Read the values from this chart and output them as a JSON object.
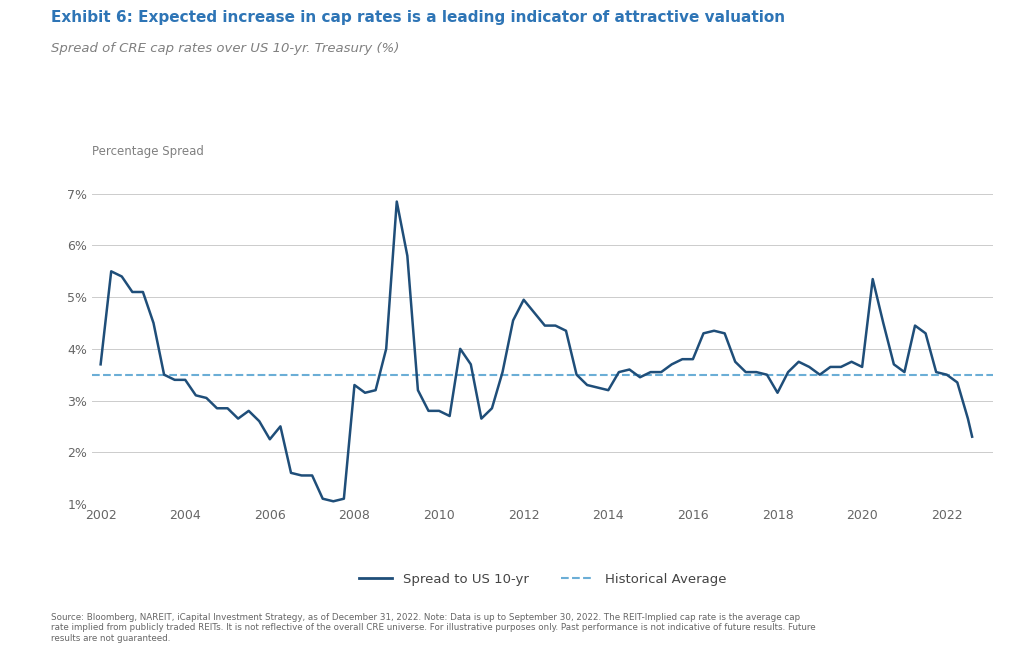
{
  "title": "Exhibit 6: Expected increase in cap rates is a leading indicator of attractive valuation",
  "subtitle": "Spread of CRE cap rates over US 10-yr. Treasury (%)",
  "ylabel": "Percentage Spread",
  "title_color": "#2E75B6",
  "subtitle_color": "#808080",
  "ylabel_color": "#808080",
  "background_color": "#FFFFFF",
  "grid_color": "#CCCCCC",
  "line_color": "#1F4E79",
  "avg_line_color": "#6BAED6",
  "historical_average": 3.5,
  "ylim": [
    1.0,
    7.5
  ],
  "yticks": [
    1,
    2,
    3,
    4,
    5,
    6,
    7
  ],
  "source_text": "Source: Bloomberg, NAREIT, iCapital Investment Strategy, as of December 31, 2022. Note: Data is up to September 30, 2022. The REIT-Implied cap rate is the average cap\nrate implied from publicly traded REITs. It is not reflective of the overall CRE universe. For illustrative purposes only. Past performance is not indicative of future results. Future\nresults are not guaranteed.",
  "legend_line_label": "Spread to US 10-yr",
  "legend_avg_label": "Historical Average",
  "x": [
    2002.0,
    2002.25,
    2002.5,
    2002.75,
    2003.0,
    2003.25,
    2003.5,
    2003.75,
    2004.0,
    2004.25,
    2004.5,
    2004.75,
    2005.0,
    2005.25,
    2005.5,
    2005.75,
    2006.0,
    2006.25,
    2006.5,
    2006.75,
    2007.0,
    2007.25,
    2007.5,
    2007.75,
    2008.0,
    2008.25,
    2008.5,
    2008.75,
    2009.0,
    2009.25,
    2009.5,
    2009.75,
    2010.0,
    2010.25,
    2010.5,
    2010.75,
    2011.0,
    2011.25,
    2011.5,
    2011.75,
    2012.0,
    2012.25,
    2012.5,
    2012.75,
    2013.0,
    2013.25,
    2013.5,
    2013.75,
    2014.0,
    2014.25,
    2014.5,
    2014.75,
    2015.0,
    2015.25,
    2015.5,
    2015.75,
    2016.0,
    2016.25,
    2016.5,
    2016.75,
    2017.0,
    2017.25,
    2017.5,
    2017.75,
    2018.0,
    2018.25,
    2018.5,
    2018.75,
    2019.0,
    2019.25,
    2019.5,
    2019.75,
    2020.0,
    2020.25,
    2020.5,
    2020.75,
    2021.0,
    2021.25,
    2021.5,
    2021.75,
    2022.0,
    2022.25,
    2022.5,
    2022.6
  ],
  "y": [
    3.7,
    5.5,
    5.4,
    5.1,
    5.1,
    4.5,
    3.5,
    3.4,
    3.4,
    3.1,
    3.05,
    2.85,
    2.85,
    2.65,
    2.8,
    2.6,
    2.25,
    2.5,
    1.6,
    1.55,
    1.55,
    1.1,
    1.05,
    1.1,
    3.3,
    3.15,
    3.2,
    4.0,
    6.85,
    5.8,
    3.2,
    2.8,
    2.8,
    2.7,
    4.0,
    3.7,
    2.65,
    2.85,
    3.55,
    4.55,
    4.95,
    4.7,
    4.45,
    4.45,
    4.35,
    3.5,
    3.3,
    3.25,
    3.2,
    3.55,
    3.6,
    3.45,
    3.55,
    3.55,
    3.7,
    3.8,
    3.8,
    4.3,
    4.35,
    4.3,
    3.75,
    3.55,
    3.55,
    3.5,
    3.15,
    3.55,
    3.75,
    3.65,
    3.5,
    3.65,
    3.65,
    3.75,
    3.65,
    5.35,
    4.5,
    3.7,
    3.55,
    4.45,
    4.3,
    3.55,
    3.5,
    3.35,
    2.65,
    2.3
  ]
}
